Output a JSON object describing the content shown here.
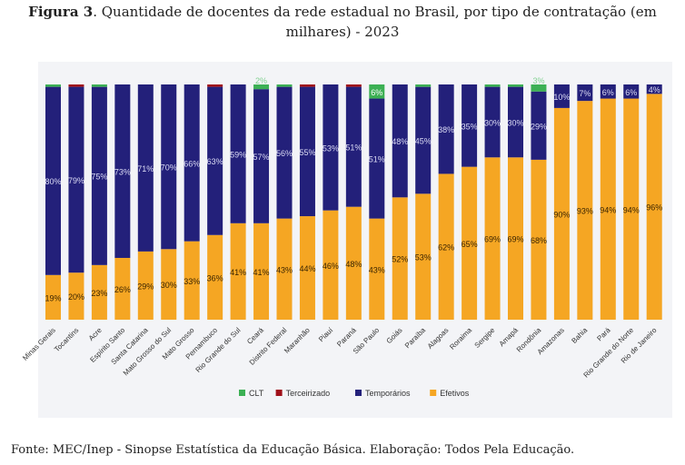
{
  "title_bold": "Figura 3",
  "title_rest": ". Quantidade de docentes da rede estadual no Brasil, por tipo de contratação (em milhares) - 2023",
  "source": "Fonte: MEC/Inep - Sinopse Estatística da Educação Básica. Elaboração: Todos Pela Educação.",
  "chart_data": {
    "type": "bar",
    "stacked": true,
    "normalized_percent": true,
    "legend_position": "bottom",
    "grid": false,
    "ylim": [
      0,
      100
    ],
    "categories": [
      "Minas Gerais",
      "Tocantins",
      "Acre",
      "Espírito Santo",
      "Santa Catarina",
      "Mato Grosso do Sul",
      "Mato Grosso",
      "Pernambuco",
      "Rio Grande do Sul",
      "Ceará",
      "Distrito Federal",
      "Maranhão",
      "Piauí",
      "Paraná",
      "São Paulo",
      "Goiás",
      "Paraíba",
      "Alagoas",
      "Roraima",
      "Sergipe",
      "Amapá",
      "Rondônia",
      "Amazonas",
      "Bahia",
      "Pará",
      "Rio Grande do Norte",
      "Rio de Janeiro"
    ],
    "series": [
      {
        "name": "Efetivos",
        "color": "#f5a623",
        "values": [
          19,
          20,
          23,
          26,
          29,
          30,
          33,
          36,
          41,
          41,
          43,
          44,
          46,
          48,
          43,
          52,
          53,
          62,
          65,
          69,
          69,
          68,
          90,
          93,
          94,
          94,
          96
        ]
      },
      {
        "name": "Temporários",
        "color": "#23207a",
        "values": [
          80,
          79,
          75,
          73,
          71,
          70,
          66,
          63,
          59,
          57,
          56,
          55,
          53,
          51,
          51,
          48,
          45,
          38,
          35,
          30,
          30,
          29,
          10,
          7,
          6,
          6,
          4
        ]
      },
      {
        "name": "Terceirizado",
        "color": "#a0101a",
        "values": [
          0,
          1,
          0,
          0,
          0,
          0,
          0,
          1,
          0,
          0,
          0,
          1,
          0,
          1,
          0,
          0,
          0,
          0,
          0,
          0,
          0,
          0,
          0,
          0,
          0,
          0,
          0
        ]
      },
      {
        "name": "CLT",
        "color": "#3cb054",
        "values": [
          1,
          0,
          1,
          0,
          0,
          0,
          0,
          0,
          0,
          2,
          1,
          0,
          0,
          0,
          6,
          0,
          1,
          0,
          0,
          1,
          1,
          3,
          0,
          0,
          0,
          0,
          0
        ]
      }
    ],
    "data_labels": {
      "Efetivos": [
        "19%",
        "20%",
        "23%",
        "26%",
        "29%",
        "30%",
        "33%",
        "36%",
        "41%",
        "41%",
        "43%",
        "44%",
        "46%",
        "48%",
        "43%",
        "52%",
        "53%",
        "62%",
        "65%",
        "69%",
        "69%",
        "68%",
        "90%",
        "93%",
        "94%",
        "94%",
        "96%"
      ],
      "Temporários": [
        "80%",
        "79%",
        "75%",
        "73%",
        "71%",
        "70%",
        "66%",
        "63%",
        "59%",
        "57%",
        "56%",
        "55%",
        "53%",
        "51%",
        "51%",
        "48%",
        "45%",
        "38%",
        "35%",
        "30%",
        "30%",
        "29%",
        "10%",
        "7%",
        "6%",
        "6%",
        "4%"
      ],
      "CLT": {
        "9": "2%",
        "14": "6%",
        "21": "3%"
      }
    },
    "legend_order": [
      "CLT",
      "Terceirizado",
      "Temporários",
      "Efetivos"
    ]
  }
}
